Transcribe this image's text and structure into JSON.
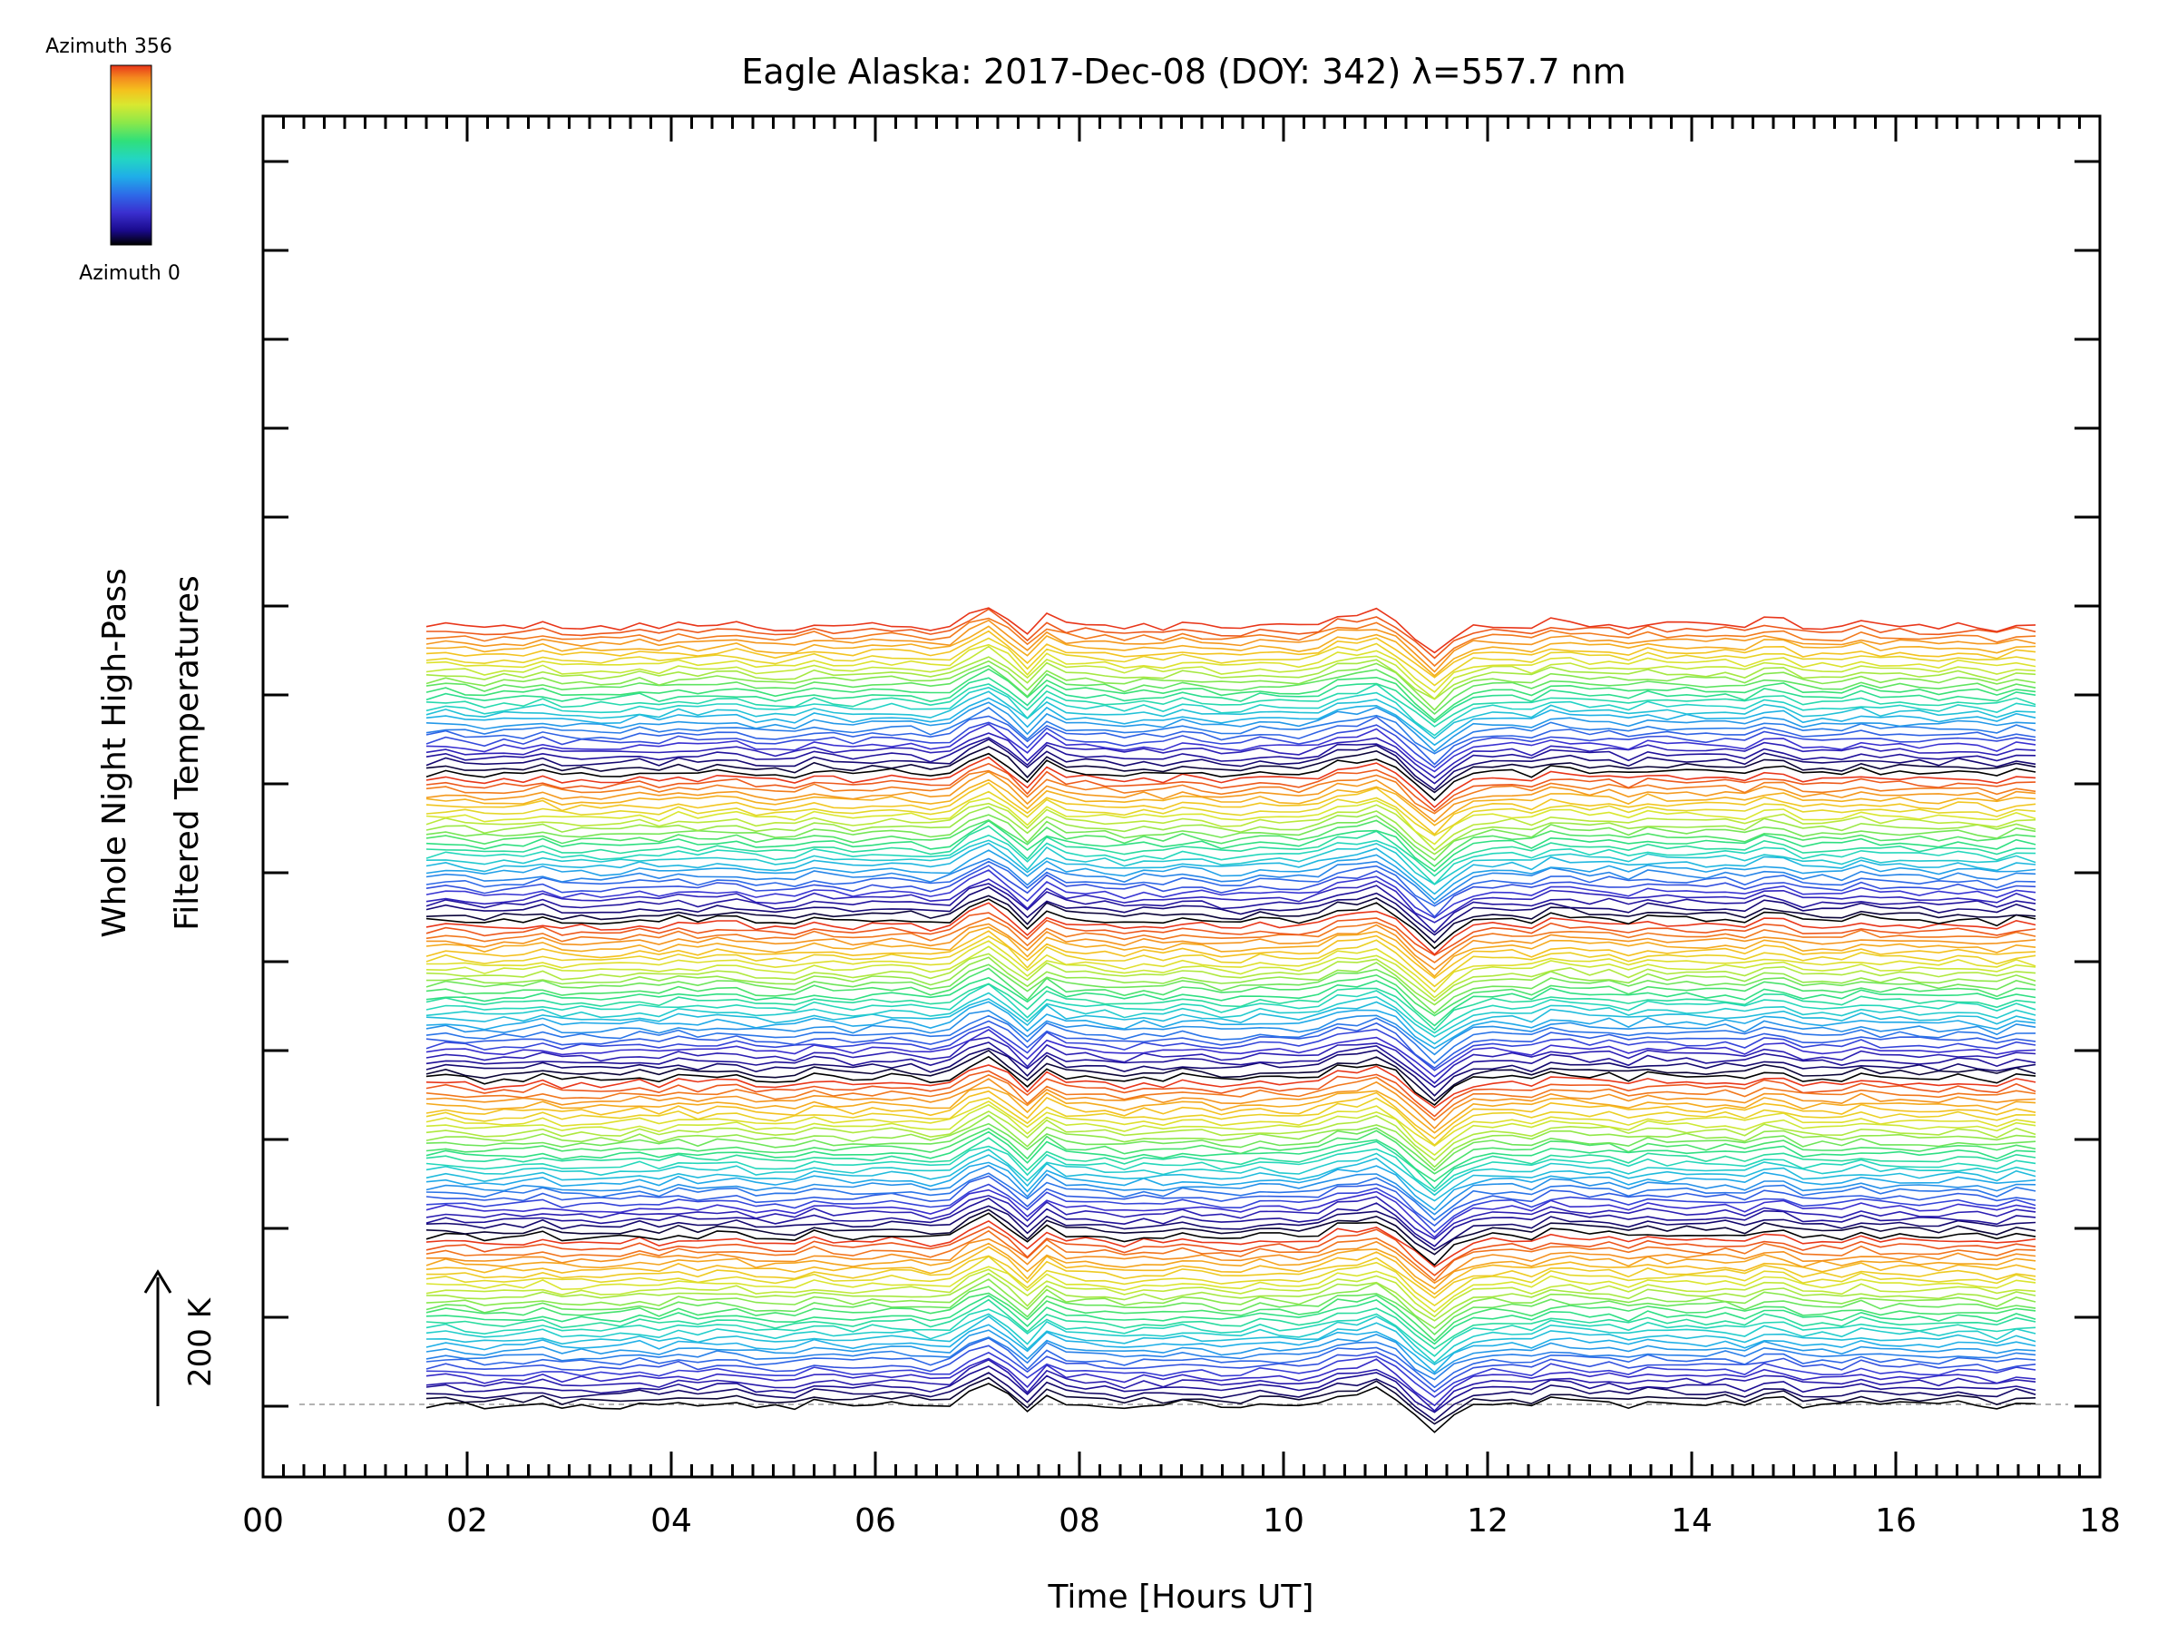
{
  "chart_data": {
    "type": "line",
    "title": "Eagle Alaska: 2017-Dec-08 (DOY: 342) λ=557.7 nm",
    "xlabel": "Time [Hours UT]",
    "ylabel_line1": "Whole Night High-Pass",
    "ylabel_line2": "Filtered Temperatures",
    "xlim": [
      0,
      18
    ],
    "x_tick_labels": [
      "00",
      "02",
      "04",
      "06",
      "08",
      "10",
      "12",
      "14",
      "16",
      "18"
    ],
    "x_ticks": [
      0,
      2,
      4,
      6,
      8,
      10,
      12,
      14,
      16,
      18
    ],
    "data_start_hour": 1.6,
    "data_end_hour": 17.5,
    "series_count": 144,
    "scale_bar_label": "200 K",
    "colorbar": {
      "top_label": "Azimuth 356",
      "bottom_label": "Azimuth 0",
      "colors": [
        "#000000",
        "#1a0a8c",
        "#3a2fd0",
        "#2d6be8",
        "#1faee8",
        "#23d6c2",
        "#30e07a",
        "#8be84a",
        "#d8e830",
        "#f4c21e",
        "#f48a1e",
        "#e8361a"
      ]
    },
    "events": [
      {
        "center_hour": 7.1,
        "note": "first disturbance"
      },
      {
        "center_hour": 7.5,
        "note": "dip"
      },
      {
        "center_hour": 11.2,
        "note": "sharp drop"
      }
    ],
    "grid": false
  }
}
